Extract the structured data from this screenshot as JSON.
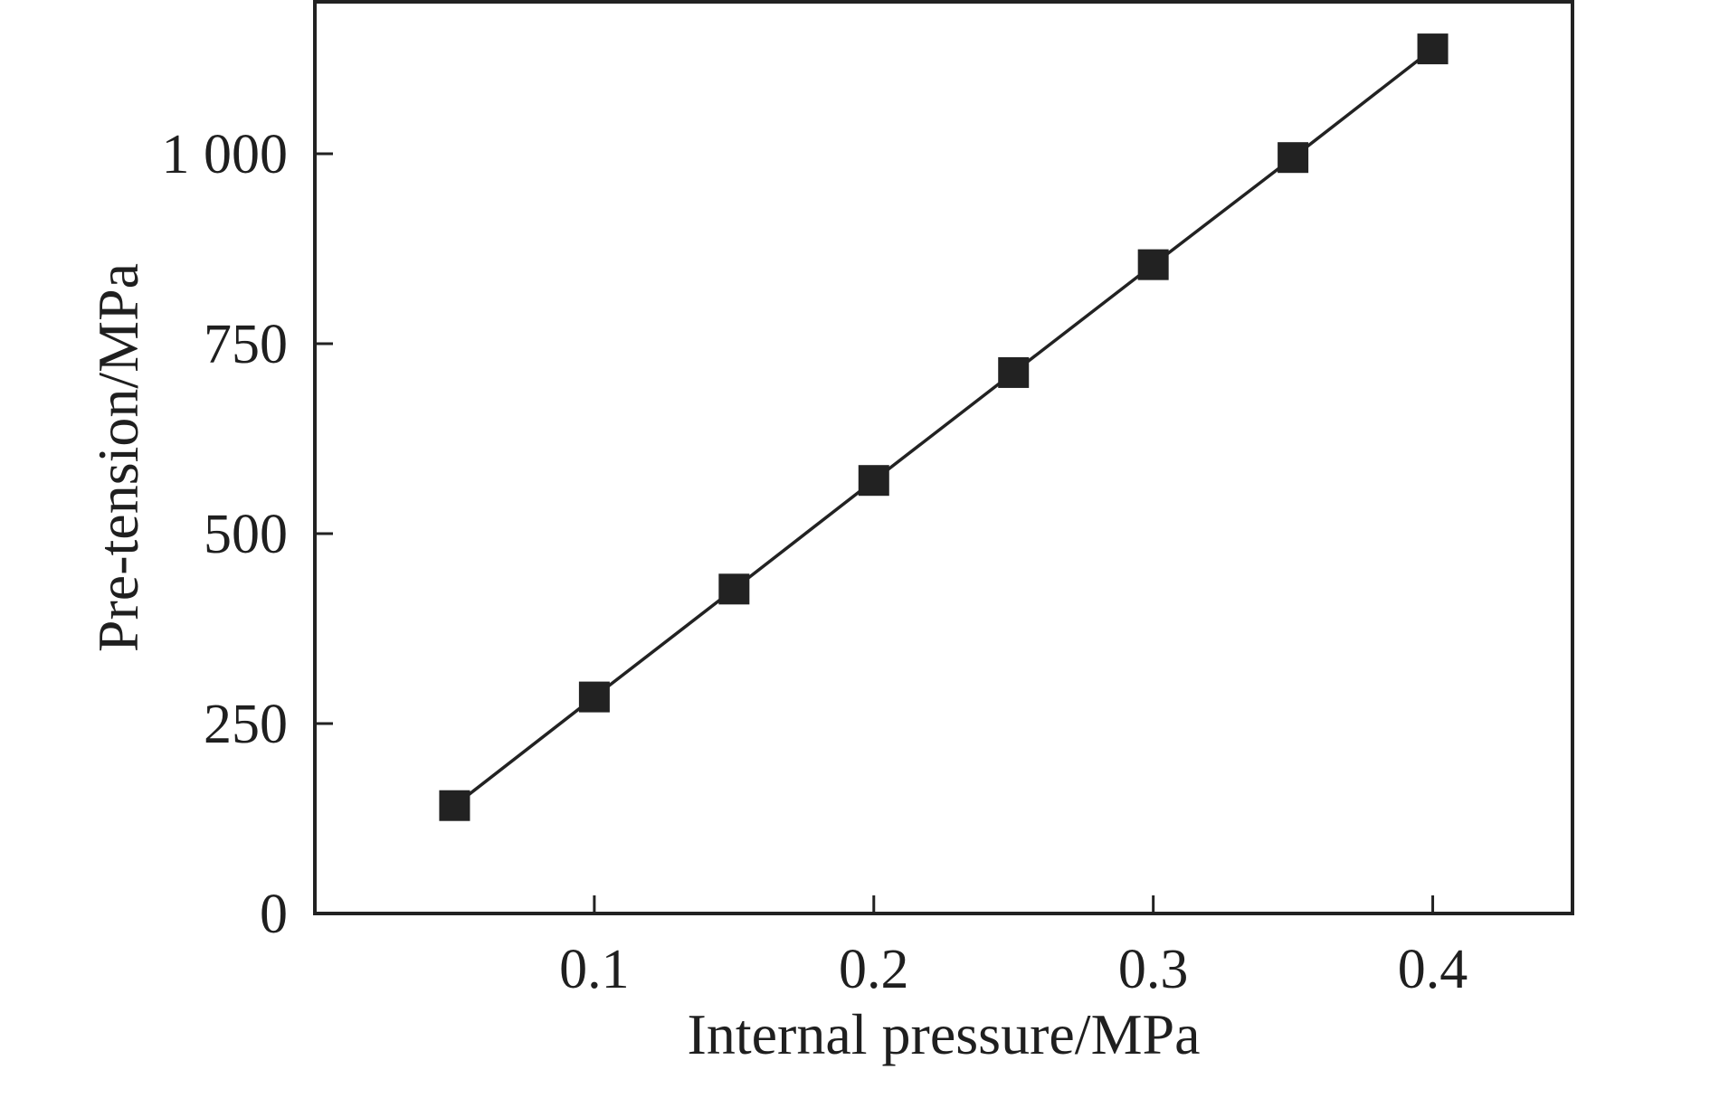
{
  "chart_data": {
    "type": "line",
    "title": "",
    "xlabel": "Internal pressure/MPa",
    "ylabel": "Pre-tension/MPa",
    "xlim": [
      0.0,
      0.45
    ],
    "ylim": [
      0,
      1200
    ],
    "xticks": [
      0.1,
      0.2,
      0.3,
      0.4
    ],
    "xtick_labels": [
      "0.1",
      "0.2",
      "0.3",
      "0.4"
    ],
    "yticks": [
      0,
      250,
      500,
      750,
      1000
    ],
    "ytick_labels": [
      "0",
      "250",
      "500",
      "750",
      "1 000"
    ],
    "grid": false,
    "legend": "none",
    "series": [
      {
        "marker": "square",
        "color": "#222222",
        "x": [
          0.05,
          0.1,
          0.15,
          0.2,
          0.25,
          0.3,
          0.35,
          0.4
        ],
        "y": [
          142,
          285,
          427,
          570,
          712,
          854,
          995,
          1138
        ]
      }
    ]
  }
}
